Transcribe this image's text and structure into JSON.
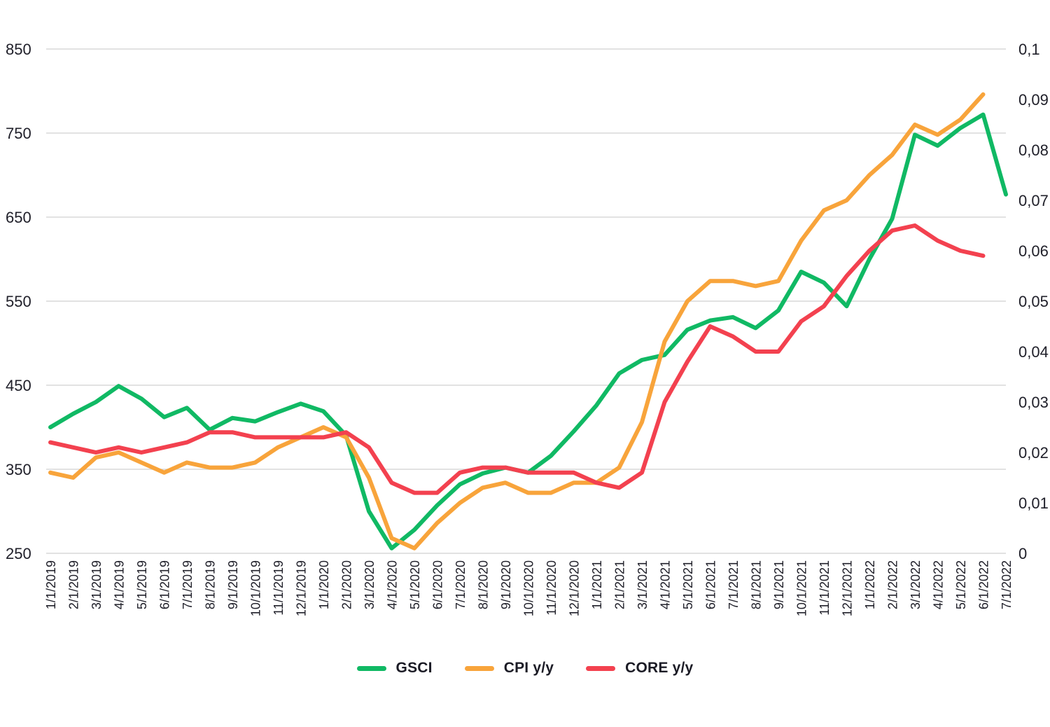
{
  "chart_data": {
    "type": "line",
    "title": "",
    "grid": true,
    "legend_position": "bottom",
    "colors": {
      "gridline": "#d8d8d8",
      "axis_text": "#20202a",
      "background": "#ffffff"
    },
    "x_labels": [
      "1/1/2019",
      "2/1/2019",
      "3/1/2019",
      "4/1/2019",
      "5/1/2019",
      "6/1/2019",
      "7/1/2019",
      "8/1/2019",
      "9/1/2019",
      "10/1/2019",
      "11/1/2019",
      "12/1/2019",
      "1/1/2020",
      "2/1/2020",
      "3/1/2020",
      "4/1/2020",
      "5/1/2020",
      "6/1/2020",
      "7/1/2020",
      "8/1/2020",
      "9/1/2020",
      "10/1/2020",
      "11/1/2020",
      "12/1/2020",
      "1/1/2021",
      "2/1/2021",
      "3/1/2021",
      "4/1/2021",
      "5/1/2021",
      "6/1/2021",
      "7/1/2021",
      "8/1/2021",
      "9/1/2021",
      "10/1/2021",
      "11/1/2021",
      "12/1/2021",
      "1/1/2022",
      "2/1/2022",
      "3/1/2022",
      "4/1/2022",
      "5/1/2022",
      "6/1/2022",
      "7/1/2022"
    ],
    "left_axis": {
      "min": 250,
      "max": 850,
      "tick_labels": [
        "850",
        "750",
        "650",
        "550",
        "450",
        "350",
        "250"
      ],
      "tick_values": [
        850,
        750,
        650,
        550,
        450,
        350,
        250
      ]
    },
    "right_axis": {
      "min": 0,
      "max": 0.1,
      "tick_labels": [
        "0,1",
        "0,09",
        "0,08",
        "0,07",
        "0,06",
        "0,05",
        "0,04",
        "0,03",
        "0,02",
        "0,01",
        "0"
      ],
      "tick_values": [
        0.1,
        0.09,
        0.08,
        0.07,
        0.06,
        0.05,
        0.04,
        0.03,
        0.02,
        0.01,
        0
      ]
    },
    "series": [
      {
        "name": "GSCI",
        "color": "#10B964",
        "axis": "left",
        "values": [
          400,
          416,
          430,
          449,
          434,
          412,
          423,
          397,
          411,
          407,
          418,
          428,
          419,
          390,
          300,
          256,
          278,
          307,
          332,
          345,
          352,
          346,
          366,
          395,
          426,
          464,
          480,
          486,
          516,
          527,
          531,
          518,
          539,
          585,
          572,
          544,
          600,
          648,
          748,
          735,
          756,
          772,
          677
        ]
      },
      {
        "name": "CPI y/y",
        "color": "#F8A43B",
        "axis": "right",
        "values": [
          0.016,
          0.015,
          0.019,
          0.02,
          0.018,
          0.016,
          0.018,
          0.017,
          0.017,
          0.018,
          0.021,
          0.023,
          0.025,
          0.023,
          0.015,
          0.003,
          0.001,
          0.006,
          0.01,
          0.013,
          0.014,
          0.012,
          0.012,
          0.014,
          0.014,
          0.017,
          0.026,
          0.042,
          0.05,
          0.054,
          0.054,
          0.053,
          0.054,
          0.062,
          0.068,
          0.07,
          0.075,
          0.079,
          0.085,
          0.083,
          0.086,
          0.091
        ]
      },
      {
        "name": "CORE y/y",
        "color": "#F3414F",
        "axis": "right",
        "values": [
          0.022,
          0.021,
          0.02,
          0.021,
          0.02,
          0.021,
          0.022,
          0.024,
          0.024,
          0.023,
          0.023,
          0.023,
          0.023,
          0.024,
          0.021,
          0.014,
          0.012,
          0.012,
          0.016,
          0.017,
          0.017,
          0.016,
          0.016,
          0.016,
          0.014,
          0.013,
          0.016,
          0.03,
          0.038,
          0.045,
          0.043,
          0.04,
          0.04,
          0.046,
          0.049,
          0.055,
          0.06,
          0.064,
          0.065,
          0.062,
          0.06,
          0.059
        ]
      }
    ]
  },
  "legend": {
    "items": [
      {
        "label": "GSCI",
        "color": "#10B964"
      },
      {
        "label": "CPI y/y",
        "color": "#F8A43B"
      },
      {
        "label": "CORE y/y",
        "color": "#F3414F"
      }
    ]
  }
}
